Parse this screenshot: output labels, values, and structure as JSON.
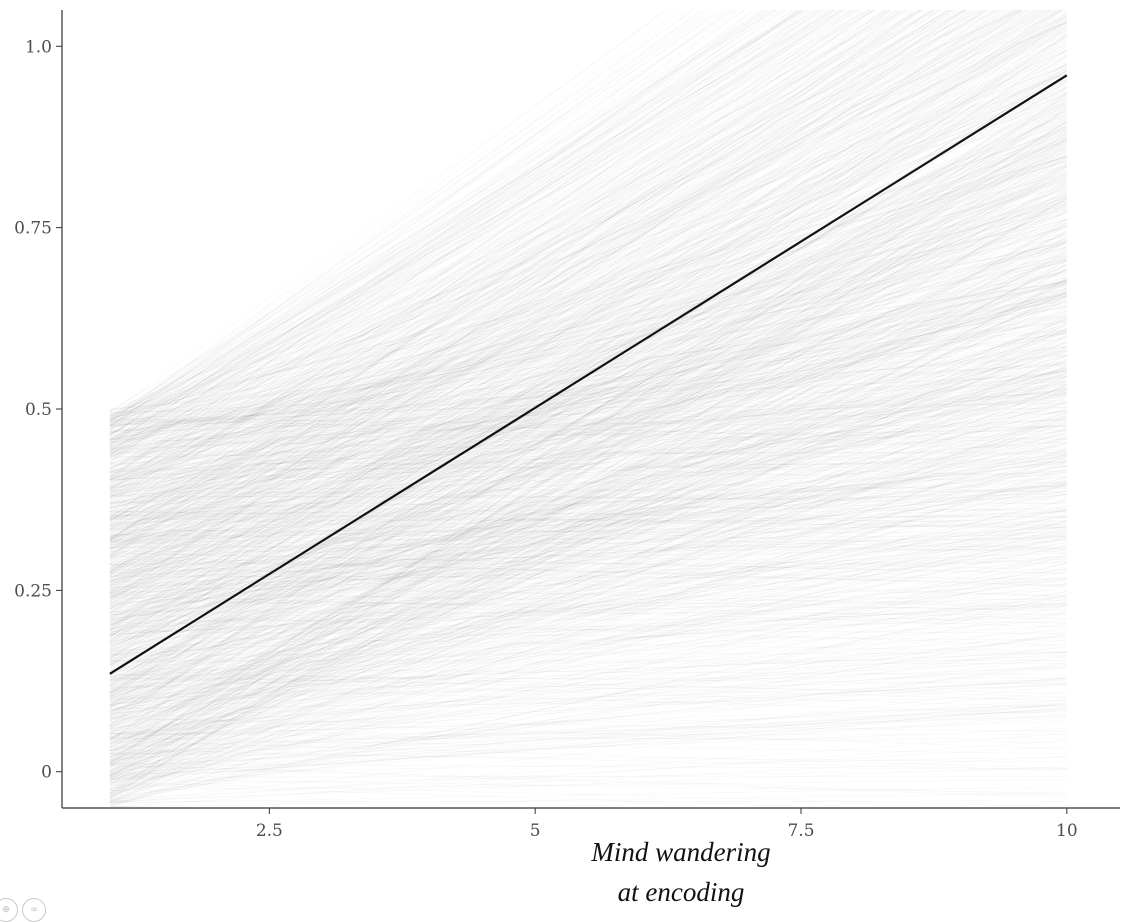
{
  "chart_data": {
    "type": "line",
    "title": "",
    "xlabel_lines": [
      "Mind wandering",
      "at encoding"
    ],
    "ylabel": "",
    "x_ticks": [
      {
        "value": 2.5,
        "label": "2.5"
      },
      {
        "value": 5,
        "label": "5"
      },
      {
        "value": 7.5,
        "label": "7.5"
      },
      {
        "value": 10,
        "label": "10"
      }
    ],
    "y_ticks": [
      {
        "value": 0,
        "label": "0"
      },
      {
        "value": 0.25,
        "label": "0.25"
      },
      {
        "value": 0.5,
        "label": "0.5"
      },
      {
        "value": 0.75,
        "label": "0.75"
      },
      {
        "value": 1,
        "label": "1.0"
      }
    ],
    "xlim": [
      0.55,
      10.5
    ],
    "ylim": [
      -0.05,
      1.05
    ],
    "grid": false,
    "legend": "none",
    "series": [
      {
        "x": [
          1,
          10
        ],
        "y": [
          0.135,
          0.96
        ],
        "color": "#111111"
      }
    ],
    "posterior_draws": {
      "x_range": [
        1,
        10
      ],
      "color": "#000000",
      "opacity": 0.03,
      "intercept_at_x1_range": [
        -0.05,
        0.5
      ],
      "slope_range": [
        -0.005,
        0.11
      ]
    }
  }
}
